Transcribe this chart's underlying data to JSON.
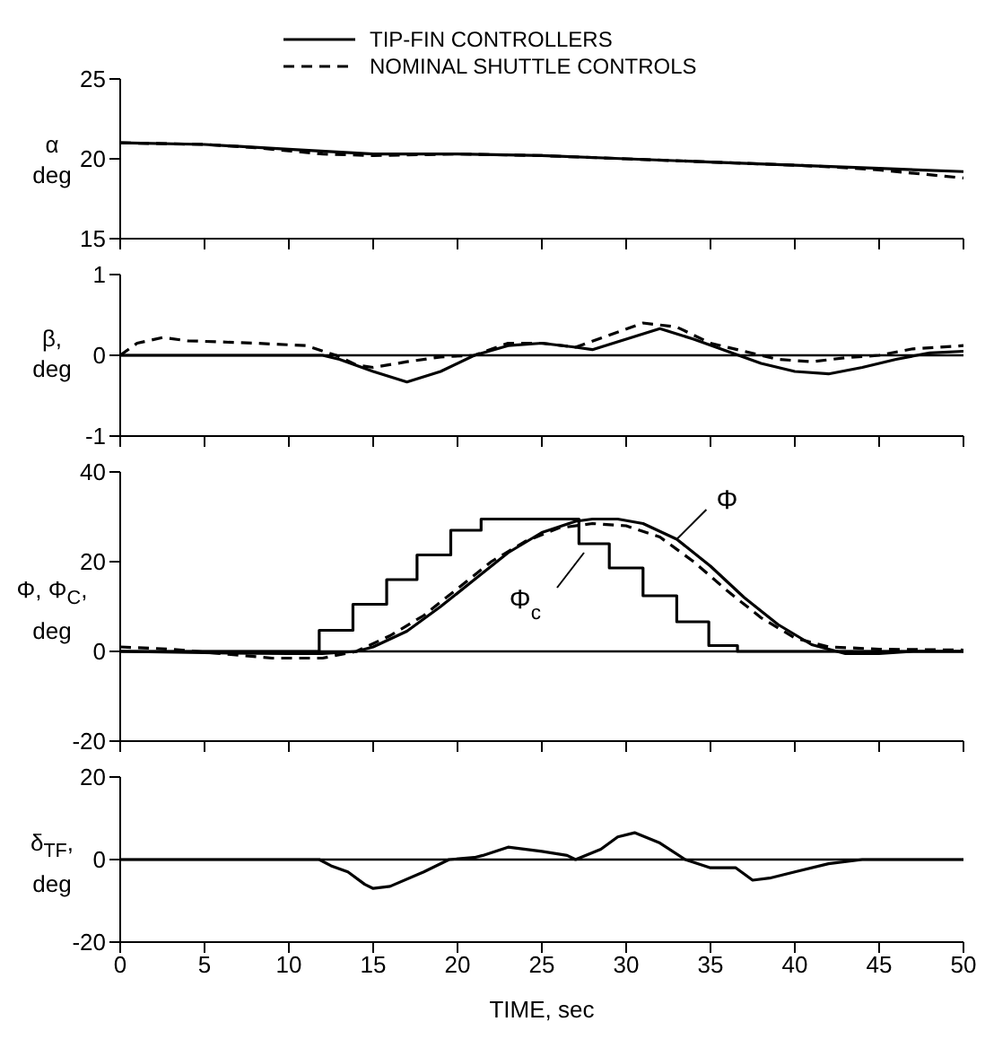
{
  "chart_data": [
    {
      "type": "line",
      "ylabel": "α\ndeg",
      "legend": "top",
      "tick_labels": "y",
      "xlim": [
        0,
        50
      ],
      "xticks": [
        0,
        5,
        10,
        15,
        20,
        25,
        30,
        35,
        40,
        45,
        50
      ],
      "ylim": [
        15,
        25
      ],
      "yticks": [
        15,
        20,
        25
      ],
      "series": [
        {
          "name": "TIP-FIN CONTROLLERS",
          "color": "#000000",
          "line_style": "solid",
          "x": [
            0,
            5,
            10,
            15,
            20,
            25,
            30,
            35,
            40,
            45,
            50
          ],
          "values": [
            21.0,
            20.9,
            20.6,
            20.3,
            20.3,
            20.2,
            20.0,
            19.8,
            19.6,
            19.4,
            19.2
          ]
        },
        {
          "name": "NOMINAL SHUTTLE CONTROLS",
          "color": "#000000",
          "line_style": "dashed",
          "x": [
            0,
            5,
            8,
            10,
            12,
            15,
            20,
            25,
            30,
            35,
            40,
            42,
            45,
            50
          ],
          "values": [
            21.0,
            20.9,
            20.7,
            20.5,
            20.3,
            20.2,
            20.3,
            20.2,
            20.0,
            19.8,
            19.6,
            19.5,
            19.3,
            18.8
          ]
        }
      ]
    },
    {
      "type": "line",
      "ylabel": "β,\ndeg",
      "tick_labels": "y",
      "xlim": [
        0,
        50
      ],
      "xticks": [
        0,
        5,
        10,
        15,
        20,
        25,
        30,
        35,
        40,
        45,
        50
      ],
      "ylim": [
        -1,
        1
      ],
      "yticks": [
        -1,
        0,
        1
      ],
      "ref_lines": [
        {
          "axis": "y",
          "value": 0,
          "color": "#000000"
        }
      ],
      "series": [
        {
          "color": "#000000",
          "line_style": "solid",
          "x": [
            0,
            10,
            12,
            13,
            15,
            17,
            19,
            21,
            23,
            25,
            27,
            28,
            30,
            32,
            34,
            36,
            38,
            40,
            42,
            44,
            46,
            48,
            50
          ],
          "values": [
            0,
            0,
            0,
            -0.05,
            -0.2,
            -0.33,
            -0.2,
            0,
            0.12,
            0.15,
            0.1,
            0.07,
            0.2,
            0.33,
            0.2,
            0.05,
            -0.1,
            -0.2,
            -0.23,
            -0.15,
            -0.05,
            0.03,
            0.05
          ]
        },
        {
          "color": "#000000",
          "line_style": "dashed",
          "x": [
            0,
            1,
            2.5,
            4,
            8,
            11,
            12.8,
            14,
            15,
            17,
            19,
            21,
            23,
            25,
            27,
            29,
            31,
            33,
            35,
            37,
            39,
            41,
            43,
            45,
            47,
            50
          ],
          "values": [
            0,
            0.15,
            0.22,
            0.18,
            0.15,
            0.12,
            0,
            -0.12,
            -0.15,
            -0.08,
            -0.02,
            0,
            0.15,
            0.15,
            0.1,
            0.25,
            0.4,
            0.35,
            0.15,
            0.05,
            -0.05,
            -0.08,
            -0.03,
            0,
            0.08,
            0.12
          ]
        }
      ]
    },
    {
      "type": "line",
      "ylabel": "Φ, Φ$_{C}$,\ndeg",
      "tick_labels": "y",
      "xlim": [
        0,
        50
      ],
      "xticks": [
        0,
        5,
        10,
        15,
        20,
        25,
        30,
        35,
        40,
        45,
        50
      ],
      "ylim": [
        -20,
        40
      ],
      "yticks": [
        -20,
        0,
        20,
        40
      ],
      "ref_lines": [
        {
          "axis": "y",
          "value": 0,
          "color": "#000000"
        }
      ],
      "annotations": [
        {
          "text": "Φ",
          "x": 33,
          "y": 25
        },
        {
          "text": "Φ$_{c}$",
          "x": 27.5,
          "y": 22
        }
      ],
      "series": [
        {
          "type": "step",
          "color": "#000000",
          "line_style": "solid",
          "x": [
            0,
            11.8,
            13.8,
            15.8,
            17.6,
            19.6,
            21.4,
            27.2,
            29,
            31,
            33,
            34.9,
            36.6,
            50
          ],
          "values": [
            0,
            4.7,
            10.5,
            16,
            21.5,
            27,
            29.5,
            24,
            18.6,
            12.4,
            6.6,
            1.3,
            0,
            0
          ]
        },
        {
          "color": "#000000",
          "line_style": "solid",
          "x": [
            0,
            5,
            10,
            12,
            14,
            15,
            17,
            19,
            21,
            23,
            25,
            27,
            28,
            29.5,
            31,
            33,
            35,
            37,
            39,
            41,
            43,
            45,
            47,
            50
          ],
          "values": [
            0,
            -0.3,
            -0.5,
            -0.5,
            0,
            1,
            4.5,
            10,
            16,
            22,
            26.5,
            29,
            29.5,
            29.5,
            28.5,
            25,
            19,
            12,
            6,
            1.5,
            -0.5,
            -0.5,
            0,
            0
          ]
        },
        {
          "color": "#000000",
          "line_style": "dashed",
          "x": [
            0,
            3,
            6,
            9,
            12,
            14,
            16,
            18,
            20,
            22,
            24,
            26,
            28,
            30,
            32,
            34,
            36,
            38,
            40,
            42,
            45,
            50
          ],
          "values": [
            1,
            0.5,
            -0.5,
            -1.5,
            -1.5,
            0,
            3.5,
            8,
            14,
            20,
            24.5,
            27.5,
            28.5,
            28,
            25.5,
            20,
            13.5,
            7.5,
            3,
            1,
            0.5,
            0.3
          ]
        }
      ]
    },
    {
      "type": "line",
      "ylabel": "δ$_{TF}$,\ndeg",
      "xlabel": "TIME, sec",
      "xlim": [
        0,
        50
      ],
      "xticks": [
        0,
        5,
        10,
        15,
        20,
        25,
        30,
        35,
        40,
        45,
        50
      ],
      "ylim": [
        -20,
        20
      ],
      "yticks": [
        -20,
        0,
        20
      ],
      "ref_lines": [
        {
          "axis": "y",
          "value": 0,
          "color": "#000000"
        }
      ],
      "series": [
        {
          "color": "#000000",
          "line_style": "solid",
          "x": [
            0,
            10,
            11.8,
            12.5,
            13.5,
            14.5,
            15,
            16,
            18,
            19.5,
            21,
            21.5,
            23,
            25,
            26.5,
            27,
            28.5,
            29.5,
            30.5,
            32,
            33.5,
            35,
            36.5,
            37.5,
            38.5,
            40,
            42,
            44,
            50
          ],
          "values": [
            0,
            0,
            0,
            -1.5,
            -3,
            -6,
            -7,
            -6.5,
            -3,
            0,
            0.5,
            1,
            3,
            2,
            1,
            0,
            2.5,
            5.5,
            6.5,
            4,
            0,
            -2,
            -2,
            -5,
            -4.5,
            -3,
            -1,
            0,
            0
          ]
        }
      ]
    }
  ]
}
